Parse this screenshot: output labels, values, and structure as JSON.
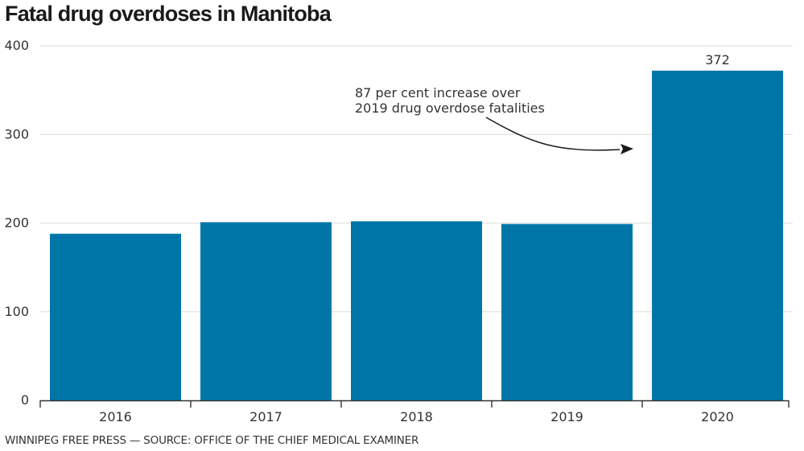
{
  "chart_data": {
    "type": "bar",
    "title": "Fatal drug overdoses in Manitoba",
    "categories": [
      "2016",
      "2017",
      "2018",
      "2019",
      "2020"
    ],
    "values": [
      188,
      201,
      202,
      199,
      372
    ],
    "data_labels": {
      "2020": "372"
    },
    "xlabel": "",
    "ylabel": "",
    "ylim": [
      0,
      400
    ],
    "yticks": [
      0,
      100,
      200,
      300,
      400
    ],
    "grid": true,
    "bar_color": "#0076a8",
    "annotation": {
      "lines": [
        "87 per cent increase over",
        "2019 drug overdose fatalities"
      ],
      "points_to": "2020"
    },
    "source": "WINNIPEG FREE PRESS — SOURCE: OFFICE OF THE CHIEF MEDICAL EXAMINER"
  }
}
